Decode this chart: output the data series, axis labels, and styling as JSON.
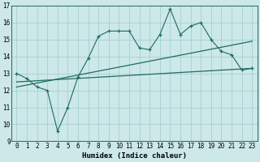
{
  "xlabel": "Humidex (Indice chaleur)",
  "ylabel": "",
  "bg_color": "#cce8e8",
  "line_color": "#1e6b5e",
  "grid_color": "#a8d0d0",
  "xlim": [
    -0.5,
    23.5
  ],
  "ylim": [
    9,
    17
  ],
  "xticks": [
    0,
    1,
    2,
    3,
    4,
    5,
    6,
    7,
    8,
    9,
    10,
    11,
    12,
    13,
    14,
    15,
    16,
    17,
    18,
    19,
    20,
    21,
    22,
    23
  ],
  "yticks": [
    9,
    10,
    11,
    12,
    13,
    14,
    15,
    16,
    17
  ],
  "line1_x": [
    0,
    1,
    2,
    3,
    4,
    5,
    6,
    7,
    8,
    9,
    10,
    11,
    12,
    13,
    14,
    15,
    16,
    17,
    18,
    19,
    20,
    21,
    22,
    23
  ],
  "line1_y": [
    13.0,
    12.7,
    12.2,
    12.0,
    9.6,
    11.0,
    12.8,
    13.9,
    15.2,
    15.5,
    15.5,
    15.5,
    14.5,
    14.4,
    15.3,
    16.8,
    15.3,
    15.8,
    16.0,
    15.0,
    14.3,
    14.1,
    13.2,
    13.3
  ],
  "line2_x": [
    0,
    23
  ],
  "line2_y": [
    12.5,
    13.3
  ],
  "line3_x": [
    0,
    23
  ],
  "line3_y": [
    12.2,
    14.9
  ],
  "tick_fontsize": 5.5,
  "xlabel_fontsize": 6.5
}
